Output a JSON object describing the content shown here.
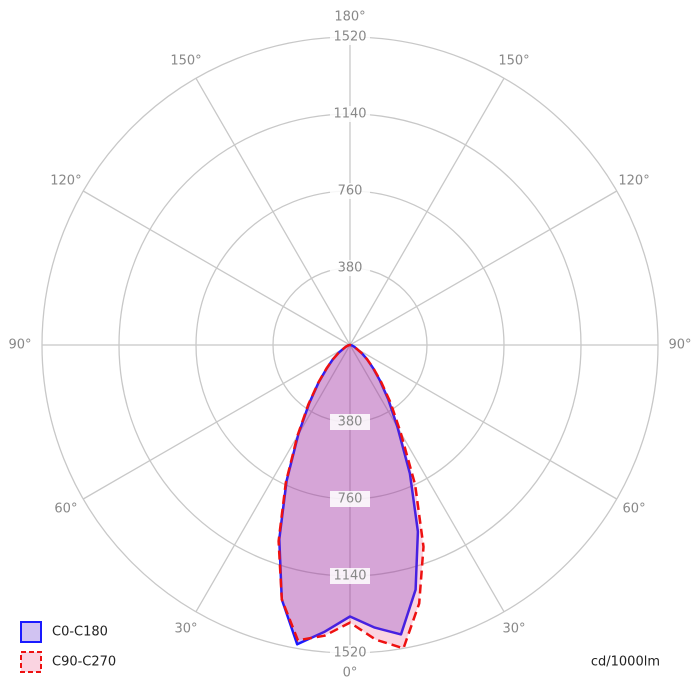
{
  "chart_data": {
    "type": "polar",
    "unit_label": "cd/1000lm",
    "rlim": [
      0,
      1520
    ],
    "rticks": [
      380,
      760,
      1140,
      1520
    ],
    "angle_ticks": [
      {
        "value": -150,
        "label": "150°"
      },
      {
        "value": -120,
        "label": "120°"
      },
      {
        "value": -90,
        "label": "90°"
      },
      {
        "value": -60,
        "label": "60°"
      },
      {
        "value": -30,
        "label": "30°"
      },
      {
        "value": 0,
        "label": "0°"
      },
      {
        "value": 30,
        "label": "30°"
      },
      {
        "value": 60,
        "label": "60°"
      },
      {
        "value": 90,
        "label": "90°"
      },
      {
        "value": 120,
        "label": "120°"
      },
      {
        "value": 150,
        "label": "150°"
      },
      {
        "value": 180,
        "label": "180°"
      }
    ],
    "grid": true,
    "x": [
      -90,
      -85,
      -80,
      -75,
      -70,
      -65,
      -60,
      -55,
      -50,
      -45,
      -40,
      -35,
      -30,
      -25,
      -20,
      -15,
      -10,
      -5,
      0,
      5,
      10,
      15,
      20,
      25,
      30,
      35,
      40,
      45,
      50,
      55,
      60,
      65,
      70,
      75,
      80,
      85,
      90
    ],
    "series": [
      {
        "name": "C0-C180",
        "color": "#1a1aff",
        "fill": "rgba(90,40,210,0.28)",
        "dash": false,
        "values": [
          0,
          2,
          5,
          10,
          15,
          25,
          40,
          70,
          110,
          160,
          240,
          350,
          510,
          740,
          1020,
          1300,
          1500,
          1420,
          1340,
          1400,
          1450,
          1250,
          980,
          700,
          470,
          330,
          230,
          160,
          110,
          70,
          40,
          25,
          15,
          10,
          5,
          2,
          0
        ]
      },
      {
        "name": "C90-C270",
        "color": "#ee1111",
        "fill": "rgba(230,60,120,0.22)",
        "dash": true,
        "values": [
          0,
          2,
          5,
          10,
          15,
          25,
          40,
          70,
          110,
          165,
          245,
          360,
          520,
          750,
          1030,
          1300,
          1480,
          1440,
          1370,
          1460,
          1520,
          1320,
          1060,
          760,
          500,
          350,
          240,
          165,
          110,
          70,
          40,
          25,
          15,
          10,
          5,
          2,
          0
        ]
      }
    ]
  }
}
